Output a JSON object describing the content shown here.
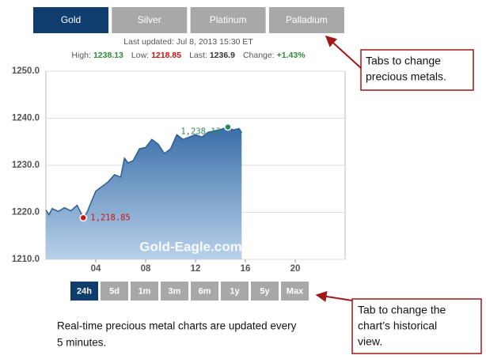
{
  "tabs": {
    "items": [
      "Gold",
      "Silver",
      "Platinum",
      "Palladium"
    ],
    "active": 0
  },
  "last_updated": "Last updated: Jul 8, 2013 15:30 ET",
  "stats": [
    {
      "label": "High:",
      "value": "1238.13",
      "color": "#2e8b3a"
    },
    {
      "label": "Low:",
      "value": "1218.85",
      "color": "#cc1111"
    },
    {
      "label": "Last:",
      "value": "1236.9",
      "color": "#333333"
    },
    {
      "label": "Change:",
      "value": "+1.43%",
      "color": "#2e8b3a"
    }
  ],
  "chart_data": {
    "type": "area",
    "x": [
      0,
      0.25,
      0.5,
      1,
      1.5,
      2,
      2.5,
      3,
      3.3,
      3.6,
      4,
      4.5,
      5,
      5.5,
      6,
      6.3,
      6.6,
      7,
      7.5,
      8,
      8.5,
      9,
      9.5,
      10,
      10.5,
      11,
      11.5,
      12,
      12.5,
      13,
      13.5,
      14,
      14.6,
      15,
      15.5,
      15.7
    ],
    "values": [
      1220.5,
      1219.5,
      1220.8,
      1220.2,
      1221.0,
      1220.3,
      1221.5,
      1218.85,
      1220,
      1222,
      1224.5,
      1225.5,
      1226.5,
      1228,
      1227.5,
      1231.5,
      1230.5,
      1231,
      1233.5,
      1233.8,
      1235.5,
      1234.5,
      1232.5,
      1233.5,
      1236.5,
      1235.5,
      1236,
      1236.5,
      1236,
      1237,
      1237.3,
      1237.6,
      1238.13,
      1237.5,
      1237.8,
      1236.9
    ],
    "color": "#2c5f95",
    "xlim": [
      0,
      24
    ],
    "xticks": [
      {
        "value": 4,
        "label": "04"
      },
      {
        "value": 8,
        "label": "08"
      },
      12,
      16,
      20
    ],
    "ylim": [
      1210,
      1250
    ],
    "yticks": [
      {
        "value": 1210,
        "label": "1210.0"
      },
      {
        "value": 1220,
        "label": "1220.0"
      },
      {
        "value": 1230,
        "label": "1230.0"
      },
      {
        "value": 1240,
        "label": "1240.0"
      },
      {
        "value": 1250,
        "label": "1250.0"
      }
    ],
    "grid": true,
    "watermark": "Gold-Eagle.com",
    "annotations": [
      {
        "text": "1,218.85",
        "x": 3,
        "y": 1218.85,
        "color": "#cc1111"
      },
      {
        "text": "1,238.13",
        "x": 14.6,
        "y": 1238.13,
        "color": "#2e8b57"
      }
    ]
  },
  "range_buttons": {
    "items": [
      "24h",
      "5d",
      "1m",
      "3m",
      "6m",
      "1y",
      "5y",
      "Max"
    ],
    "active": 0
  },
  "callouts": [
    {
      "lines": [
        "Tabs to change",
        "precious metals."
      ]
    },
    {
      "lines": [
        "Tab to change the",
        "chart’s historical",
        "view."
      ]
    }
  ],
  "footnote": [
    "Real-time precious metal charts are updated every",
    "5 minutes."
  ]
}
